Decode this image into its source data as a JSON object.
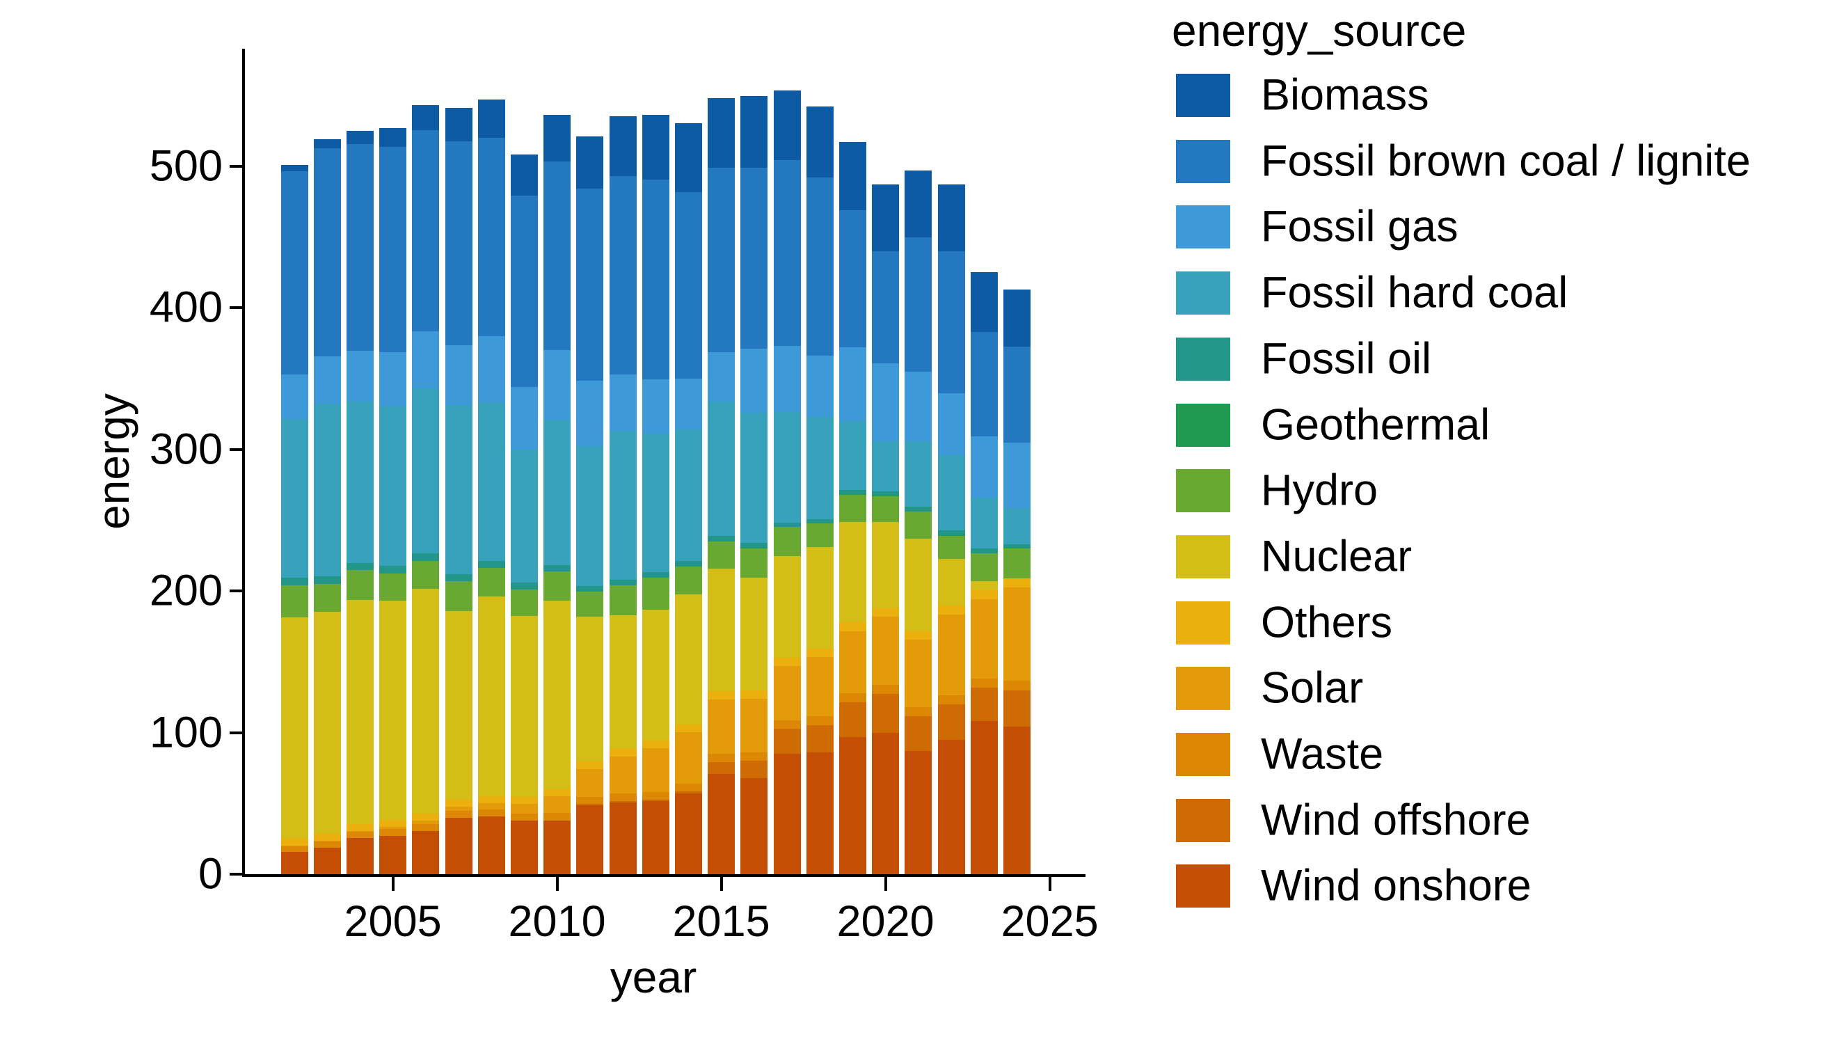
{
  "figure": {
    "background_color": "#ffffff",
    "text_color": "#000000",
    "axis_color": "#000000"
  },
  "chart_data": {
    "type": "bar",
    "stacked": true,
    "title": "",
    "xlabel": "year",
    "ylabel": "energy",
    "legend_title": "energy_source",
    "legend_position": "right",
    "grid": false,
    "x": [
      2002,
      2003,
      2004,
      2005,
      2006,
      2007,
      2008,
      2009,
      2010,
      2011,
      2012,
      2013,
      2014,
      2015,
      2016,
      2017,
      2018,
      2019,
      2020,
      2021,
      2022,
      2023,
      2024
    ],
    "x_ticks": [
      2005,
      2010,
      2015,
      2020,
      2025
    ],
    "y_ticks": [
      0,
      100,
      200,
      300,
      400,
      500
    ],
    "ylim": [
      0,
      583
    ],
    "stack_note": "series listed in legend order (top legend entry = topmost stack segment); bottom of each bar is the last series (Wind onshore)",
    "series": [
      {
        "name": "Biomass",
        "color": "#0d5ba4",
        "values": [
          4.7,
          6.6,
          9.3,
          13.4,
          17.9,
          23.3,
          27.0,
          29.0,
          32.8,
          36.9,
          42.3,
          45.5,
          48.3,
          49.5,
          50.3,
          49.0,
          50.1,
          48.1,
          47.1,
          47.2,
          47.3,
          42.1,
          40.4
        ]
      },
      {
        "name": "Fossil brown coal / lignite",
        "color": "#2378bf",
        "values": [
          143.3,
          146.6,
          146.0,
          144.8,
          141.9,
          144.1,
          140.1,
          134.9,
          133.2,
          135.5,
          139.7,
          141.0,
          132.0,
          130.0,
          128.0,
          131.0,
          126.0,
          97.0,
          79.0,
          95.0,
          100.0,
          74.0,
          68.0
        ]
      },
      {
        "name": "Fossil gas",
        "color": "#3d99d8",
        "values": [
          31.7,
          33.8,
          35.9,
          38.7,
          40.3,
          42.4,
          46.7,
          44.3,
          49.1,
          46.5,
          40.0,
          38.4,
          35.8,
          34.8,
          44.9,
          47.0,
          43.0,
          52.0,
          55.0,
          49.0,
          44.0,
          43.0,
          46.0
        ]
      },
      {
        "name": "Fossil hard coal",
        "color": "#38a2bd",
        "values": [
          111.8,
          121.6,
          114.0,
          112.2,
          116.5,
          119.5,
          112.0,
          94.0,
          102.6,
          98.5,
          104.9,
          97.8,
          93.0,
          95.0,
          92.0,
          78.0,
          72.0,
          48.7,
          35.6,
          46.4,
          53.0,
          36.1,
          25.4
        ]
      },
      {
        "name": "Fossil oil",
        "color": "#219689",
        "values": [
          5.3,
          5.4,
          5.1,
          5.5,
          5.1,
          5.0,
          4.9,
          4.6,
          4.3,
          4.0,
          4.2,
          4.0,
          3.9,
          3.8,
          3.7,
          3.0,
          3.2,
          3.0,
          3.1,
          3.1,
          3.5,
          3.1,
          3.0
        ]
      },
      {
        "name": "Geothermal",
        "color": "#1e9a51",
        "values": [
          0.0,
          0.0,
          0.0,
          0.0,
          0.0,
          0.0,
          0.0,
          0.0,
          0.0,
          0.0,
          0.0,
          0.1,
          0.1,
          0.1,
          0.2,
          0.2,
          0.2,
          0.2,
          0.2,
          0.2,
          0.2,
          0.2,
          0.2
        ]
      },
      {
        "name": "Hydro",
        "color": "#69a931",
        "values": [
          22.9,
          19.7,
          20.9,
          19.5,
          19.8,
          20.7,
          20.2,
          19.0,
          21.0,
          17.7,
          21.2,
          22.7,
          19.6,
          19.0,
          20.5,
          20.2,
          16.6,
          19.2,
          18.3,
          19.1,
          16.5,
          19.5,
          21.0
        ]
      },
      {
        "name": "Nuclear",
        "color": "#d4bd17",
        "values": [
          156.3,
          156.9,
          158.4,
          154.6,
          158.7,
          133.2,
          140.9,
          127.7,
          133.0,
          102.3,
          94.2,
          92.1,
          91.8,
          86.8,
          80.0,
          72.2,
          71.9,
          71.1,
          60.9,
          65.4,
          32.8,
          6.7,
          0.0
        ]
      },
      {
        "name": "Others",
        "color": "#ebaf0e",
        "values": [
          4.9,
          5.0,
          5.0,
          5.0,
          5.1,
          5.1,
          5.2,
          5.0,
          5.1,
          5.2,
          5.3,
          5.4,
          5.5,
          5.6,
          5.7,
          5.8,
          5.9,
          6.0,
          6.1,
          6.2,
          6.3,
          6.4,
          6.5
        ]
      },
      {
        "name": "Solar",
        "color": "#e49b09",
        "values": [
          0.2,
          0.3,
          0.6,
          1.3,
          2.2,
          3.1,
          4.4,
          6.6,
          11.7,
          19.6,
          26.4,
          31.0,
          36.1,
          38.7,
          38.1,
          38.0,
          41.6,
          44.0,
          48.0,
          47.5,
          57.0,
          55.7,
          66.0
        ]
      },
      {
        "name": "Waste",
        "color": "#dc8805",
        "values": [
          4.1,
          4.2,
          4.3,
          4.8,
          4.8,
          4.9,
          5.0,
          5.1,
          5.2,
          5.3,
          5.4,
          5.5,
          5.6,
          5.7,
          5.8,
          6.1,
          6.2,
          6.3,
          6.4,
          6.5,
          6.6,
          6.7,
          6.8
        ]
      },
      {
        "name": "Wind offshore",
        "color": "#cf6b03",
        "values": [
          0.0,
          0.0,
          0.0,
          0.0,
          0.0,
          0.0,
          0.0,
          0.0,
          0.2,
          0.6,
          0.7,
          0.9,
          1.4,
          8.3,
          12.1,
          17.7,
          19.3,
          24.4,
          27.3,
          24.4,
          24.8,
          23.5,
          25.7
        ]
      },
      {
        "name": "Wind onshore",
        "color": "#c44e04",
        "values": [
          15.8,
          18.9,
          25.5,
          27.2,
          30.7,
          39.7,
          40.6,
          37.8,
          37.8,
          48.9,
          50.7,
          51.7,
          57.0,
          70.8,
          67.9,
          85.0,
          86.0,
          97.0,
          100.0,
          87.0,
          95.0,
          108.0,
          104.0
        ]
      }
    ]
  }
}
